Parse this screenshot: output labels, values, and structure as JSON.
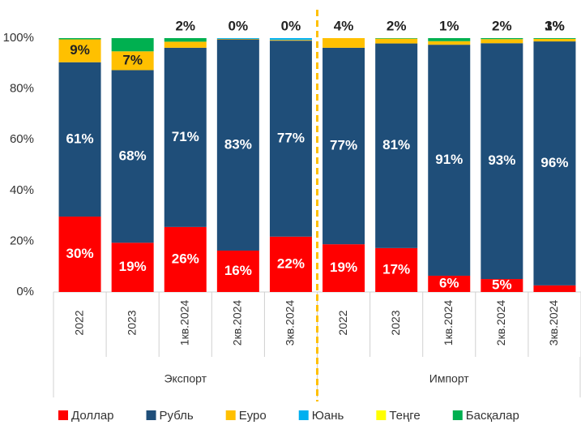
{
  "chart_data": {
    "type": "stacked_bar",
    "categories": [
      "2022",
      "2023",
      "1кв.2024",
      "2кв.2024",
      "3кв.2024",
      "2022",
      "2023",
      "1кв.2024",
      "2кв.2024",
      "3кв.2024"
    ],
    "groups": [
      {
        "label": "Экспорт",
        "size": 5
      },
      {
        "label": "Импорт",
        "size": 5
      }
    ],
    "series": [
      {
        "name": "Доллар",
        "color": "#ff0000",
        "values": [
          29.7,
          19.4,
          25.6,
          16.3,
          21.8,
          18.8,
          17.3,
          6.4,
          5.1,
          2.6
        ],
        "value_labels": [
          "30%",
          "19%",
          "26%",
          "16%",
          "22%",
          "19%",
          "17%",
          "6%",
          "5%",
          "3%"
        ]
      },
      {
        "name": "Рубль",
        "color": "#1f4e79",
        "values": [
          60.8,
          68,
          70.6,
          83.2,
          77.2,
          77.4,
          80.6,
          91,
          92.9,
          96.1
        ],
        "value_labels": [
          "61%",
          "68%",
          "71%",
          "83%",
          "77%",
          "77%",
          "81%",
          "91%",
          "93%",
          "96%"
        ]
      },
      {
        "name": "Еуро",
        "color": "#ffc000",
        "values": [
          9,
          7.4,
          2.4,
          0.2,
          0.3,
          3.8,
          1.9,
          1.4,
          1.6,
          1.0
        ],
        "value_labels": [
          "9%",
          "7%",
          "2%",
          "0%",
          "0%",
          "4%",
          "2%",
          "1%",
          "2%",
          "1%"
        ]
      },
      {
        "name": "Юань",
        "color": "#00b0f0",
        "values": [
          0,
          0,
          0,
          0.3,
          0.7,
          0,
          0,
          0,
          0,
          0
        ]
      },
      {
        "name": "Теңге",
        "color": "#ffff00",
        "values": [
          0,
          0,
          0,
          0,
          0,
          0,
          0,
          0,
          0,
          0
        ]
      },
      {
        "name": "Басқалар",
        "color": "#00b050",
        "values": [
          0.5,
          5.2,
          1.4,
          0,
          0,
          0,
          0.2,
          1.2,
          0.4,
          0.3
        ]
      }
    ],
    "ylim": [
      0,
      100
    ],
    "yticks": [
      {
        "value": 0,
        "label": "0%"
      },
      {
        "value": 20,
        "label": "20%"
      },
      {
        "value": 40,
        "label": "40%"
      },
      {
        "value": 60,
        "label": "60%"
      },
      {
        "value": 80,
        "label": "80%"
      },
      {
        "value": 100,
        "label": "100%"
      }
    ]
  }
}
